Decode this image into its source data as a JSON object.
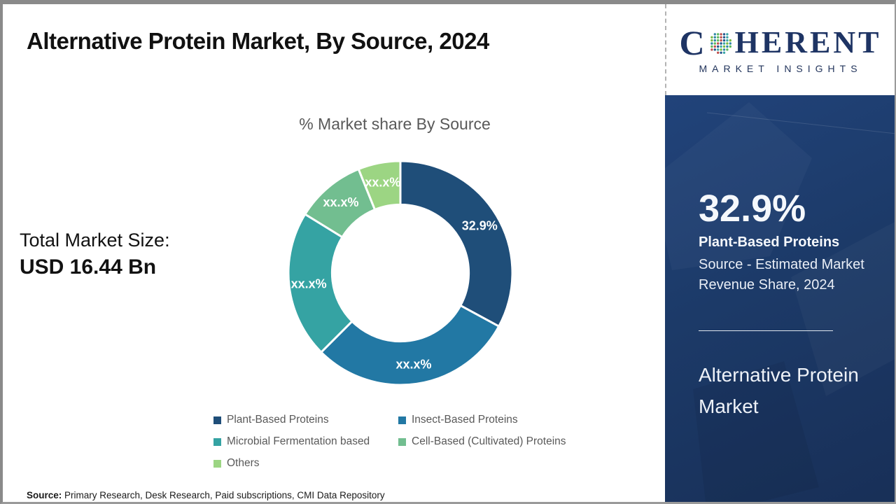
{
  "page": {
    "title": "Alternative Protein Market, By Source, 2024",
    "footer": {
      "label": "Source:",
      "text": " Primary Research, Desk Research, Paid subscriptions, CMI Data Repository"
    }
  },
  "main": {
    "total_market": {
      "label": "Total Market Size:",
      "value": "USD 16.44 Bn"
    }
  },
  "chart_data": {
    "type": "donut",
    "title": "% Market share By Source",
    "unit": "% market revenue share, 2024",
    "hole_ratio": 0.61,
    "legend_position": "bottom",
    "segments": [
      {
        "label": "Plant-Based Proteins",
        "display": "32.9%",
        "value": 32.9,
        "color": "#1F4E79"
      },
      {
        "label": "Insect-Based Proteins",
        "display": "xx.x%",
        "value": 29.6,
        "color": "#2278A4"
      },
      {
        "label": "Microbial Fermentation based",
        "display": "xx.x%",
        "value": 21.3,
        "color": "#35A3A3"
      },
      {
        "label": "Cell-Based (Cultivated) Proteins",
        "display": "xx.x%",
        "value": 10.1,
        "color": "#72BE90"
      },
      {
        "label": "Others",
        "display": "xx.x%",
        "value": 6.1,
        "color": "#9CD583"
      }
    ]
  },
  "sidebar": {
    "logo": {
      "c": "C",
      "rest": "HERENT",
      "tagline": "MARKET INSIGHTS"
    },
    "highlight": {
      "value": "32.9%",
      "segment": "Plant-Based Proteins",
      "description": "Source - Estimated Market Revenue Share, 2024"
    },
    "report_title": "Alternative Protein Market",
    "colors": {
      "panel": "#1c3a68",
      "accent_navy": "#1F4E79"
    }
  }
}
